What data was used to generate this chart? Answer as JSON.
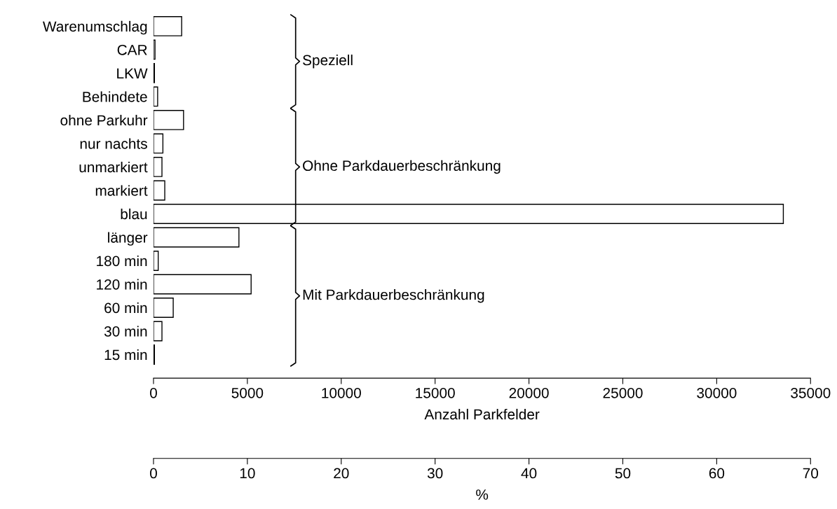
{
  "chart_data": {
    "type": "bar",
    "orientation": "horizontal",
    "categories": [
      "Warenumschlag",
      "CAR",
      "LKW",
      "Behindete",
      "ohne Parkuhr",
      "nur nachts",
      "unmarkiert",
      "markiert",
      "blau",
      "länger",
      "180 min",
      "120 min",
      "60 min",
      "30 min",
      "15 min"
    ],
    "values": [
      1500,
      80,
      50,
      220,
      1600,
      500,
      450,
      600,
      33550,
      4550,
      250,
      5200,
      1050,
      450,
      50
    ],
    "color": "#ffffff",
    "xlabel": "Anzahl Parkfelder",
    "xlim": [
      0,
      35000
    ],
    "xticks": [
      0,
      5000,
      10000,
      15000,
      20000,
      25000,
      30000,
      35000
    ],
    "x2label": "%",
    "x2lim": [
      0,
      70
    ],
    "x2ticks": [
      0,
      10,
      20,
      30,
      40,
      50,
      60,
      70
    ],
    "annotations": [
      "Speziell",
      "Ohne Parkdauerbeschränkung",
      "Mit Parkdauerbeschränkung"
    ],
    "grid": false,
    "legend": false
  }
}
